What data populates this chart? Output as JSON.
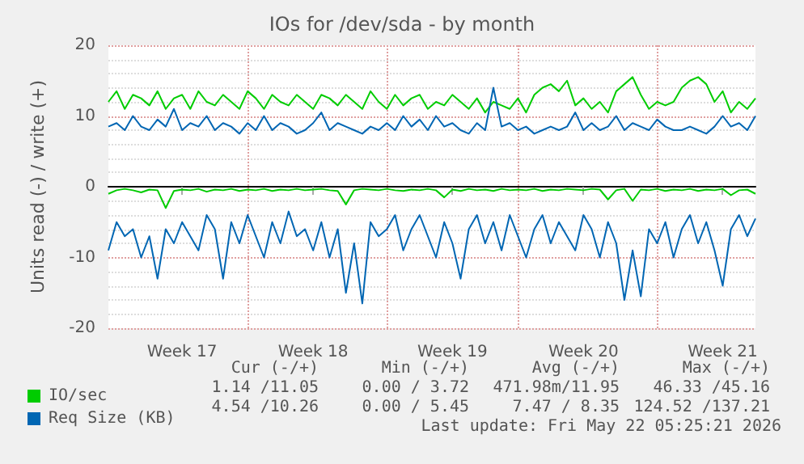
{
  "chart_data": {
    "type": "line",
    "title": "IOs for /dev/sda - by month",
    "ylabel": "Units read (-) / write (+)",
    "categories": [
      null,
      null,
      null,
      null,
      null,
      null,
      null,
      null,
      null,
      "Week 17",
      null,
      null,
      null,
      null,
      null,
      null,
      null,
      null,
      null,
      null,
      null,
      null,
      null,
      null,
      null,
      "Week 18",
      null,
      null,
      null,
      null,
      null,
      null,
      null,
      null,
      null,
      null,
      null,
      null,
      null,
      null,
      null,
      null,
      "Week 19",
      null,
      null,
      null,
      null,
      null,
      null,
      null,
      null,
      null,
      null,
      null,
      null,
      null,
      null,
      null,
      "Week 20",
      null,
      null,
      null,
      null,
      null,
      null,
      null,
      null,
      null,
      null,
      null,
      null,
      null,
      null,
      null,
      null,
      "Week 21",
      null,
      null,
      null,
      null
    ],
    "ylim": [
      -20,
      20
    ],
    "yticks": [
      -20,
      -10,
      0,
      10,
      20
    ],
    "grid": true,
    "legend": "bottom left",
    "marker": "none",
    "series": [
      {
        "name": "IO/sec",
        "color": "#00cc00",
        "values": [
          12,
          13.5,
          11,
          13,
          12.5,
          11.5,
          13.5,
          11,
          12.5,
          13,
          11,
          13.5,
          12,
          11.5,
          13,
          12,
          11,
          13.5,
          12.5,
          11,
          13,
          12,
          11.5,
          13,
          12,
          11,
          13,
          12.5,
          11.5,
          13,
          12,
          11,
          13.5,
          12,
          11,
          13,
          11.5,
          12.5,
          13,
          11,
          12,
          11.5,
          13,
          12,
          11,
          12.5,
          10.5,
          12,
          11.5,
          11,
          12.5,
          10.5,
          13,
          14,
          14.5,
          13.5,
          15,
          11.5,
          12.5,
          11,
          12,
          10.5,
          13.5,
          14.5,
          15.5,
          13,
          11,
          12,
          11.5,
          12,
          14,
          15,
          15.5,
          14.5,
          12,
          13.5,
          10.5,
          12,
          11,
          12.5
        ]
      },
      {
        "color": "#00cc00",
        "values": [
          -1,
          -0.5,
          -0.3,
          -0.5,
          -0.8,
          -0.4,
          -0.5,
          -3,
          -0.6,
          -0.4,
          -0.5,
          -0.3,
          -0.7,
          -0.4,
          -0.5,
          -0.3,
          -0.6,
          -0.4,
          -0.5,
          -0.3,
          -0.6,
          -0.4,
          -0.5,
          -0.3,
          -0.5,
          -0.4,
          -0.3,
          -0.5,
          -0.6,
          -2.5,
          -0.5,
          -0.3,
          -0.4,
          -0.5,
          -0.3,
          -0.5,
          -0.6,
          -0.4,
          -0.5,
          -0.3,
          -0.5,
          -1.5,
          -0.4,
          -0.6,
          -0.3,
          -0.5,
          -0.4,
          -0.6,
          -0.3,
          -0.5,
          -0.4,
          -0.5,
          -0.3,
          -0.6,
          -0.4,
          -0.5,
          -0.3,
          -0.4,
          -0.5,
          -0.3,
          -0.4,
          -1.8,
          -0.5,
          -0.3,
          -2,
          -0.4,
          -0.5,
          -0.3,
          -0.6,
          -0.4,
          -0.5,
          -0.3,
          -0.6,
          -0.4,
          -0.5,
          -0.3,
          -1.2,
          -0.5,
          -0.4,
          -1
        ]
      },
      {
        "name": "Req Size (KB)",
        "color": "#0066b3",
        "values": [
          8.5,
          9,
          8,
          10,
          8.5,
          8,
          9.5,
          8.5,
          11,
          8,
          9,
          8.5,
          10,
          8,
          9,
          8.5,
          7.5,
          9,
          8,
          10,
          8,
          9,
          8.5,
          7.5,
          8,
          9,
          10.5,
          8,
          9,
          8.5,
          8,
          7.5,
          8.5,
          8,
          9,
          8,
          10,
          8.5,
          9.5,
          8,
          10,
          8.5,
          9,
          8,
          7.5,
          9,
          8,
          14,
          8.5,
          9,
          8,
          8.5,
          7.5,
          8,
          8.5,
          8,
          8.5,
          10.5,
          8,
          9,
          8,
          8.5,
          10,
          8,
          9,
          8.5,
          8,
          9.5,
          8.5,
          8,
          8,
          8.5,
          8,
          7.5,
          8.5,
          10,
          8.5,
          9,
          8,
          10
        ]
      },
      {
        "color": "#0066b3",
        "values": [
          -9,
          -5,
          -7,
          -6,
          -10,
          -7,
          -13,
          -6,
          -8,
          -5,
          -7,
          -9,
          -4,
          -6,
          -13,
          -5,
          -8,
          -4,
          -7,
          -10,
          -5,
          -8,
          -3.5,
          -7,
          -6,
          -9,
          -5,
          -10,
          -6,
          -15,
          -8,
          -16.5,
          -5,
          -7,
          -6,
          -4,
          -9,
          -6,
          -4,
          -7,
          -10,
          -5,
          -8,
          -13,
          -6,
          -4,
          -8,
          -5,
          -9,
          -4,
          -7,
          -10,
          -6,
          -4,
          -8,
          -5,
          -7,
          -9,
          -4,
          -6,
          -10,
          -5,
          -8,
          -16,
          -9,
          -15.5,
          -6,
          -8,
          -5,
          -10,
          -6,
          -4,
          -8,
          -5,
          -9,
          -14,
          -6,
          -4,
          -7,
          -4.5
        ]
      }
    ],
    "annotations": [
      "Cur (-/+)",
      "Min (-/+)",
      "Avg (-/+)",
      "Max (-/+)",
      "1.14 /11.05",
      "0.00 / 3.72",
      "471.98m/11.95",
      "46.33 /45.16",
      "4.54 /10.26",
      "0.00 / 5.45",
      "7.47 / 8.35",
      "124.52 /137.21",
      "Last update: Fri May 22 05:25:21 2026"
    ]
  }
}
